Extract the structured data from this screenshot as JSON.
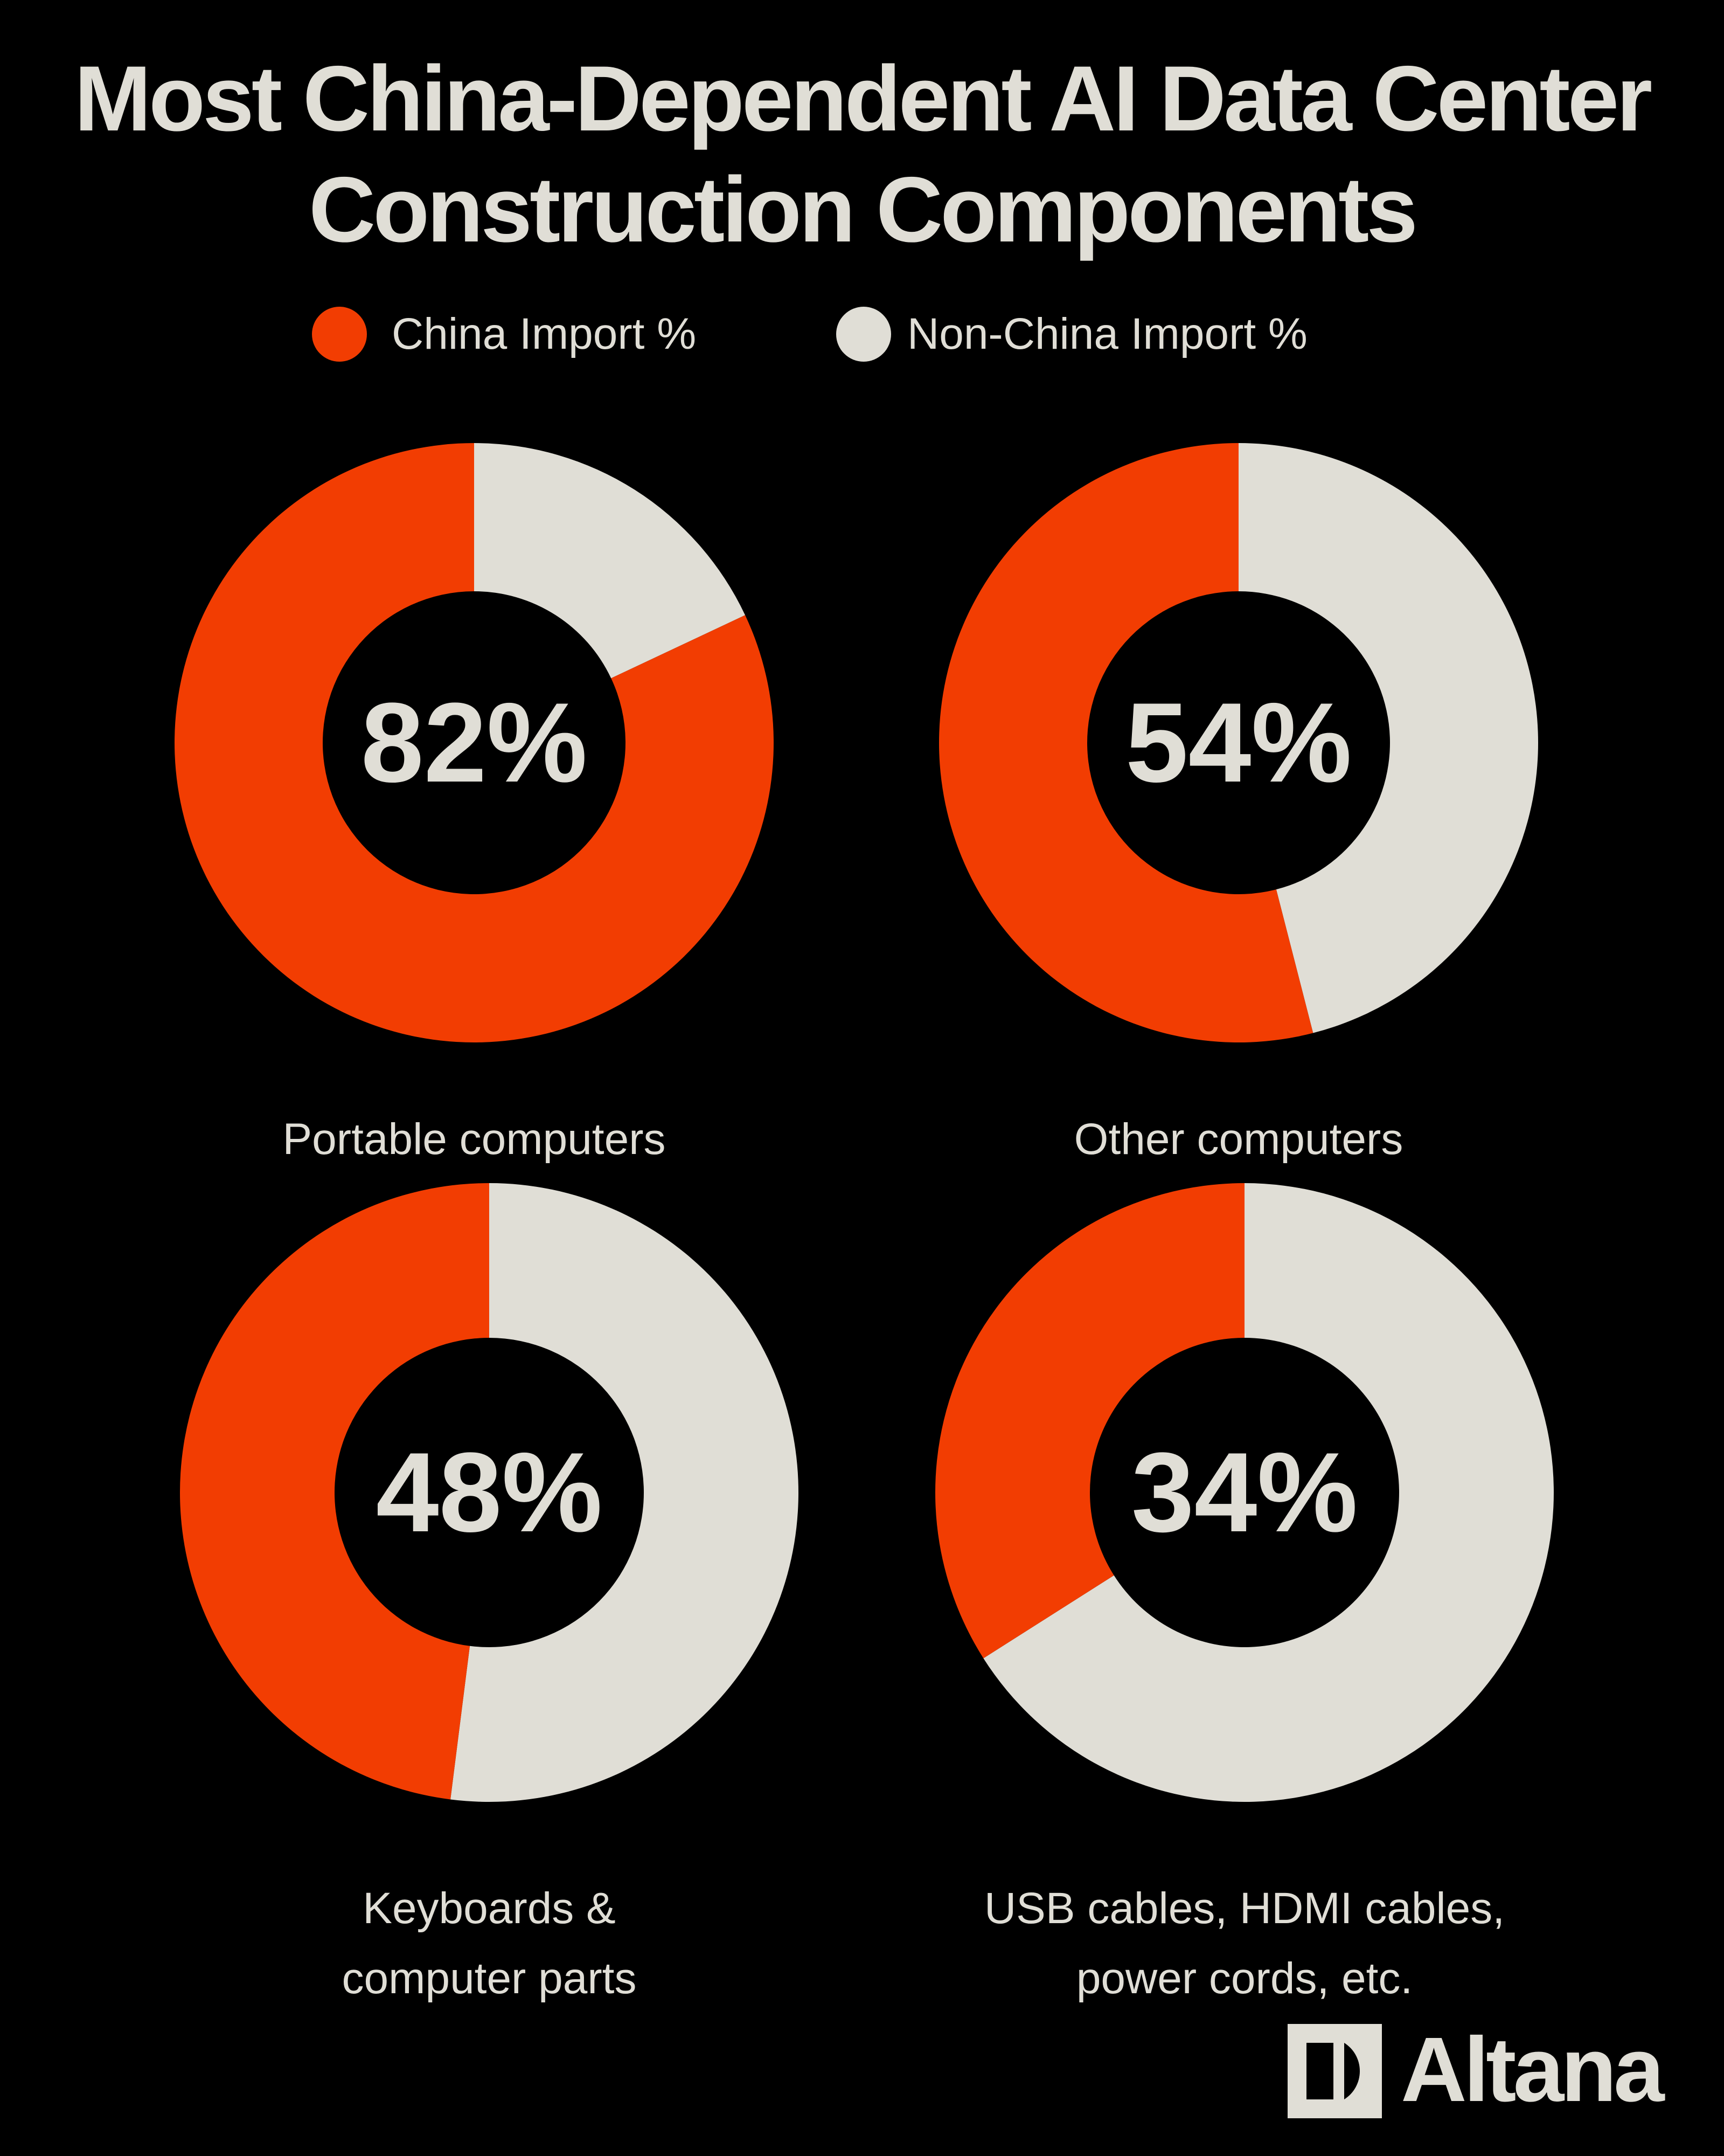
{
  "title": "Most China-Dependent AI Data Center Construction Components",
  "legend": [
    {
      "name": "China Import %",
      "color": "#f23d02"
    },
    {
      "name": "Non-China Import %",
      "color": "#e0ded6"
    }
  ],
  "chart_data": [
    {
      "type": "donut",
      "label": "Portable computers",
      "values": [
        82,
        18
      ],
      "value_labels": [
        "82%",
        null
      ]
    },
    {
      "type": "donut",
      "label": "Other computers",
      "values": [
        54,
        46
      ],
      "value_labels": [
        "54%",
        null
      ]
    },
    {
      "type": "donut",
      "label": "Keyboards &\ncomputer parts",
      "values": [
        48,
        52
      ],
      "value_labels": [
        "48%",
        null
      ]
    },
    {
      "type": "donut",
      "label": "USB cables, HDMI cables,\npower cords, etc.",
      "values": [
        34,
        66
      ],
      "value_labels": [
        "34%",
        null
      ]
    }
  ],
  "brand": "Altana"
}
